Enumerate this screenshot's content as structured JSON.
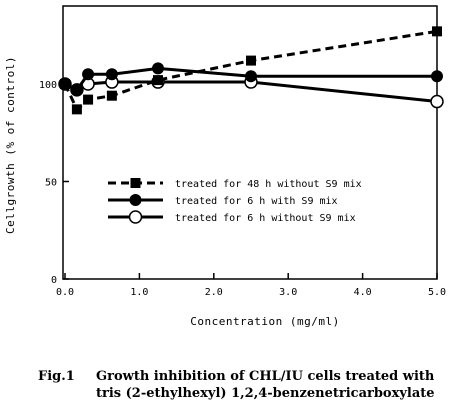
{
  "chart_data": {
    "type": "line",
    "ylabel": "Cellgrowth (% of control)",
    "xlabel": "Concentration (mg/ml)",
    "xlim": [
      0,
      5.0
    ],
    "ylim": [
      0,
      140
    ],
    "xticks": [
      "0.0",
      "1.0",
      "2.0",
      "3.0",
      "4.0",
      "5.0"
    ],
    "yticks": [
      "0",
      "50",
      "100"
    ],
    "grid": false,
    "legend_position": "lower-left",
    "series": [
      {
        "name": "treated for 48 h without S9 mix",
        "style": "dashed",
        "marker": "filled-square",
        "x": [
          0,
          0.16,
          0.31,
          0.63,
          1.25,
          2.5,
          5.0
        ],
        "y": [
          100,
          87,
          92,
          94,
          102,
          112,
          127
        ]
      },
      {
        "name": "treated for 6 h with S9 mix",
        "style": "solid",
        "marker": "filled-circle",
        "x": [
          0,
          0.16,
          0.31,
          0.63,
          1.25,
          2.5,
          5.0
        ],
        "y": [
          100,
          97,
          105,
          105,
          108,
          104,
          104
        ]
      },
      {
        "name": "treated for 6 h without S9 mix",
        "style": "solid",
        "marker": "open-circle",
        "x": [
          0,
          0.16,
          0.31,
          0.63,
          1.25,
          2.5,
          5.0
        ],
        "y": [
          100,
          97,
          100,
          101,
          101,
          101,
          91
        ]
      }
    ]
  },
  "caption": {
    "label": "Fig.1",
    "line1": "Growth inhibition of CHL/IU cells treated with",
    "line2": "tris (2-ethylhexyl) 1,2,4-benzenetricarboxylate"
  }
}
